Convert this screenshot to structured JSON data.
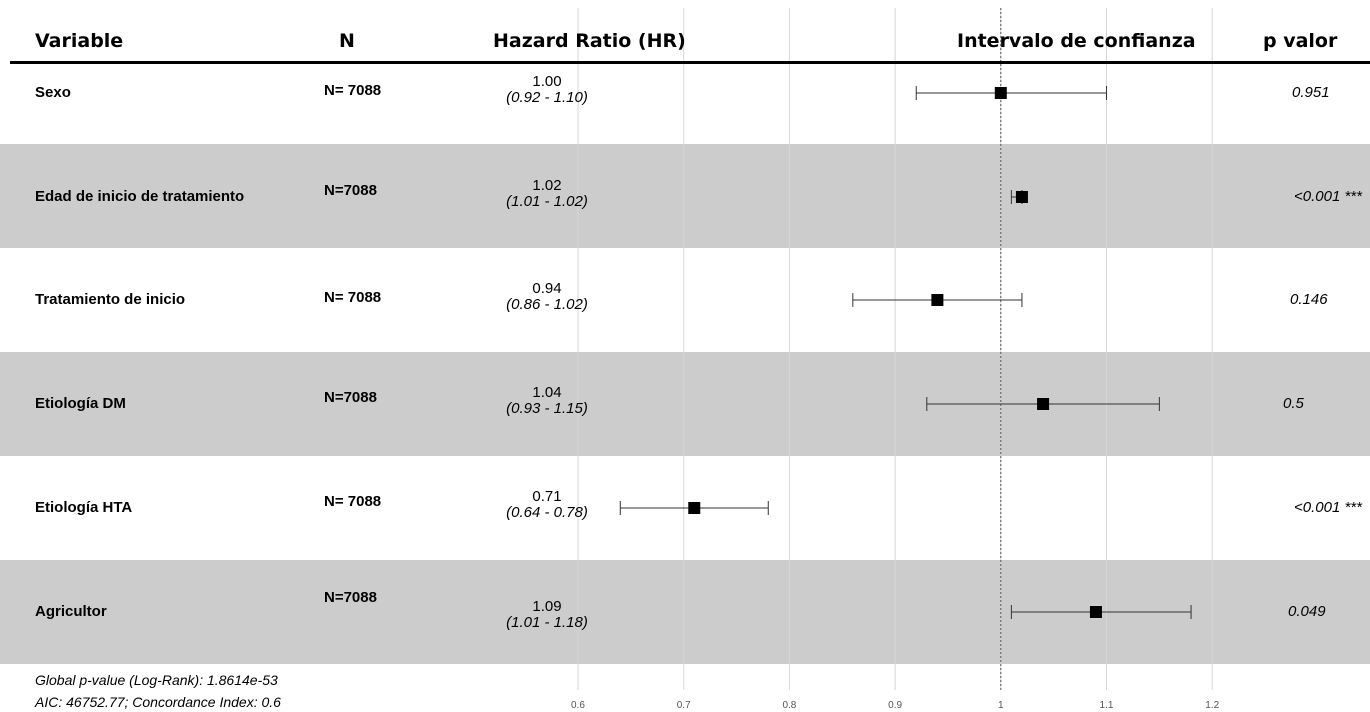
{
  "headers": {
    "variable": "Variable",
    "n": "N",
    "hr": "Hazard Ratio (HR)",
    "ci": "Intervalo de confianza",
    "p": "p valor"
  },
  "chart_data": {
    "type": "forest",
    "x_ticks": [
      0.6,
      0.7,
      0.8,
      0.9,
      1,
      1.1,
      1.2
    ],
    "x_tick_labels": [
      "0.6",
      "0.7",
      "0.8",
      "0.9",
      "1",
      "1.1",
      "1.2"
    ],
    "reference_line": 1,
    "rows": [
      {
        "variable": "Sexo",
        "n": "N= 7088",
        "hr": 1.0,
        "lo": 0.92,
        "hi": 1.1,
        "hr_text": "1.00",
        "ci_text": "(0.92 - 1.10)",
        "p": "0.951",
        "shaded": false
      },
      {
        "variable": "Edad de inicio de tratamiento",
        "n": "N=7088",
        "hr": 1.02,
        "lo": 1.01,
        "hi": 1.02,
        "hr_text": "1.02",
        "ci_text": "(1.01 - 1.02)",
        "p": "<0.001 ***",
        "shaded": true
      },
      {
        "variable": "Tratamiento de inicio",
        "n": "N= 7088",
        "hr": 0.94,
        "lo": 0.86,
        "hi": 1.02,
        "hr_text": "0.94",
        "ci_text": "(0.86 - 1.02)",
        "p": "0.146",
        "shaded": false
      },
      {
        "variable": "Etiología DM",
        "n": "N=7088",
        "hr": 1.04,
        "lo": 0.93,
        "hi": 1.15,
        "hr_text": "1.04",
        "ci_text": "(0.93 - 1.15)",
        "p": "0.5",
        "shaded": true
      },
      {
        "variable": "Etiología HTA",
        "n": "N= 7088",
        "hr": 0.71,
        "lo": 0.64,
        "hi": 0.78,
        "hr_text": "0.71",
        "ci_text": "(0.64 - 0.78)",
        "p": "<0.001 ***",
        "shaded": false
      },
      {
        "variable": "Agricultor",
        "n": "N=7088",
        "hr": 1.09,
        "lo": 1.01,
        "hi": 1.18,
        "hr_text": "1.09",
        "ci_text": "(1.01 - 1.18)",
        "p": "0.049",
        "shaded": true
      }
    ]
  },
  "footer": {
    "line1": "Global p-value (Log-Rank): 1.8614e-53",
    "line2": "AIC: 46752.77; Concordance Index: 0.6"
  }
}
